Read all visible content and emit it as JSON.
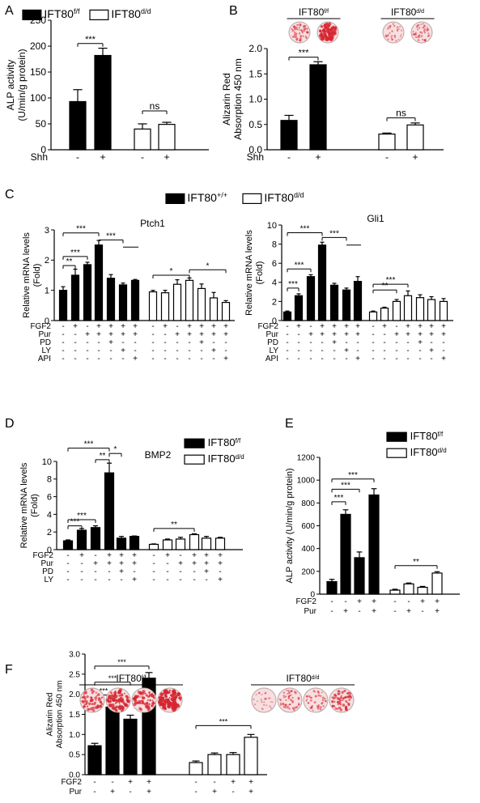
{
  "figure_labels": [
    "A",
    "B",
    "C",
    "D",
    "E",
    "F"
  ],
  "genotypes": {
    "ff": {
      "base": "IFT80",
      "sup": "f/f"
    },
    "dd": {
      "base": "IFT80",
      "sup": "d/d"
    },
    "pp": {
      "base": "IFT80",
      "sup": "+/+"
    }
  },
  "colors": {
    "filled": "#000000",
    "open": "#ffffff",
    "stain": "#d62631",
    "dish_bg": "#f7dfe0"
  },
  "chart_data": [
    {
      "id": "A",
      "type": "bar",
      "ylabel_lines": [
        "ALP activity",
        "(U/min/g protein)"
      ],
      "ylim": [
        0,
        250
      ],
      "yticks": [
        "0",
        "50",
        "100",
        "150",
        "200",
        "250"
      ],
      "legend": [
        "ff",
        "dd"
      ],
      "groups": [
        {
          "fill": "filled",
          "values": [
            93,
            182
          ],
          "errors": [
            23,
            14
          ]
        },
        {
          "fill": "open",
          "values": [
            40,
            49
          ],
          "errors": [
            10,
            4
          ]
        }
      ],
      "treat_rows": [
        {
          "name": "Shh",
          "marks": [
            "-",
            "+",
            "-",
            "+"
          ]
        }
      ],
      "sig": [
        {
          "label": "***",
          "from": 0,
          "to": 1,
          "y": 205
        },
        {
          "label": "ns",
          "from": 2,
          "to": 3,
          "y": 75
        }
      ]
    },
    {
      "id": "B",
      "type": "bar",
      "ylabel_lines": [
        "Alizarin Red",
        "Absorption 450 nm"
      ],
      "ylim": [
        0,
        2.0
      ],
      "yticks": [
        "0.0",
        "0.5",
        "1.0",
        "1.5",
        "2.0"
      ],
      "header": [
        {
          "genotype": "ff",
          "dishes": [
            0.35,
            0.8
          ]
        },
        {
          "genotype": "dd",
          "dishes": [
            0.2,
            0.3
          ]
        }
      ],
      "groups": [
        {
          "fill": "filled",
          "values": [
            0.58,
            1.68
          ],
          "errors": [
            0.1,
            0.06
          ]
        },
        {
          "fill": "open",
          "values": [
            0.31,
            0.49
          ],
          "errors": [
            0.02,
            0.04
          ]
        }
      ],
      "treat_rows": [
        {
          "name": "Shh",
          "marks": [
            "-",
            "+",
            "-",
            "+"
          ]
        }
      ],
      "sig": [
        {
          "label": "***",
          "from": 0,
          "to": 1,
          "y": 1.83
        },
        {
          "label": "ns",
          "from": 2,
          "to": 3,
          "y": 0.63
        }
      ]
    },
    {
      "id": "C1",
      "type": "bar",
      "title": "Ptch1",
      "ylabel_lines": [
        "Relative mRNA levels",
        "(Fold)"
      ],
      "ylim": [
        0,
        3
      ],
      "yticks": [
        "0",
        "1",
        "2",
        "3"
      ],
      "groups": [
        {
          "fill": "filled",
          "values": [
            1.0,
            1.5,
            1.85,
            2.5,
            1.4,
            1.18,
            1.33
          ],
          "errors": [
            0.12,
            0.2,
            0.08,
            0.15,
            0.12,
            0.06,
            0.03
          ]
        },
        {
          "fill": "open",
          "values": [
            0.95,
            0.92,
            1.2,
            1.33,
            1.06,
            0.75,
            0.6
          ],
          "errors": [
            0.05,
            0.08,
            0.15,
            0.08,
            0.15,
            0.18,
            0.06
          ]
        }
      ],
      "treat_rows": [
        {
          "name": "FGF2",
          "marks": [
            "-",
            "+",
            "-",
            "+",
            "+",
            "+",
            "+",
            "-",
            "+",
            "-",
            "+",
            "+",
            "+",
            "+"
          ]
        },
        {
          "name": "Pur",
          "marks": [
            "-",
            "-",
            "+",
            "+",
            "+",
            "+",
            "+",
            "-",
            "-",
            "+",
            "+",
            "+",
            "+",
            "+"
          ]
        },
        {
          "name": "PD",
          "marks": [
            "-",
            "-",
            "-",
            "-",
            "+",
            "-",
            "-",
            "-",
            "-",
            "-",
            "-",
            "+",
            "-",
            "-"
          ]
        },
        {
          "name": "LY",
          "marks": [
            "-",
            "-",
            "-",
            "-",
            "-",
            "+",
            "-",
            "-",
            "-",
            "-",
            "-",
            "-",
            "+",
            "-"
          ]
        },
        {
          "name": "API",
          "marks": [
            "-",
            "-",
            "-",
            "-",
            "-",
            "-",
            "+",
            "-",
            "-",
            "-",
            "-",
            "-",
            "-",
            "+"
          ]
        }
      ],
      "sig": [
        {
          "label": "**",
          "from": 0,
          "to": 1,
          "y": 1.82
        },
        {
          "label": "***",
          "from": 0,
          "to": 2,
          "y": 2.12
        },
        {
          "label": "***",
          "from": 0,
          "to": 3,
          "y": 2.9
        },
        {
          "label": "***",
          "from": 3,
          "to": 5,
          "y": 2.67,
          "to_right": 6
        },
        {
          "label": "*",
          "from": 7,
          "to": 10,
          "y": 1.5
        },
        {
          "label": "*",
          "from": 10,
          "to": 13,
          "y": 1.68
        }
      ]
    },
    {
      "id": "C2",
      "type": "bar",
      "title": "Gli1",
      "ylabel_lines": [
        "Relative mRNA levels",
        "(Fold)"
      ],
      "ylim": [
        0,
        10
      ],
      "yticks": [
        "0",
        "2",
        "4",
        "6",
        "8",
        "10"
      ],
      "groups": [
        {
          "fill": "filled",
          "values": [
            0.9,
            2.6,
            4.6,
            7.9,
            3.7,
            3.2,
            4.1
          ],
          "errors": [
            0.1,
            0.2,
            0.2,
            0.3,
            0.2,
            0.2,
            0.5
          ]
        },
        {
          "fill": "open",
          "values": [
            0.9,
            1.3,
            2.0,
            2.6,
            2.4,
            2.2,
            2.0
          ],
          "errors": [
            0.1,
            0.1,
            0.2,
            0.5,
            0.3,
            0.3,
            0.3
          ]
        }
      ],
      "treat_rows": [
        {
          "name": "FGF2",
          "marks": [
            "-",
            "+",
            "-",
            "+",
            "+",
            "+",
            "+",
            "-",
            "+",
            "-",
            "+",
            "+",
            "+",
            "+"
          ]
        },
        {
          "name": "Pur",
          "marks": [
            "-",
            "-",
            "+",
            "+",
            "+",
            "+",
            "+",
            "-",
            "-",
            "+",
            "+",
            "+",
            "+",
            "+"
          ]
        },
        {
          "name": "PD",
          "marks": [
            "-",
            "-",
            "-",
            "-",
            "+",
            "-",
            "-",
            "-",
            "-",
            "-",
            "-",
            "+",
            "-",
            "-"
          ]
        },
        {
          "name": "LY",
          "marks": [
            "-",
            "-",
            "-",
            "-",
            "-",
            "+",
            "-",
            "-",
            "-",
            "-",
            "-",
            "-",
            "+",
            "-"
          ]
        },
        {
          "name": "API",
          "marks": [
            "-",
            "-",
            "-",
            "-",
            "-",
            "-",
            "+",
            "-",
            "-",
            "-",
            "-",
            "-",
            "-",
            "+"
          ]
        }
      ],
      "sig": [
        {
          "label": "***",
          "from": 0,
          "to": 1,
          "y": 3.4
        },
        {
          "label": "***",
          "from": 0,
          "to": 2,
          "y": 5.4
        },
        {
          "label": "***",
          "from": 0,
          "to": 3,
          "y": 9.2
        },
        {
          "label": "***",
          "from": 3,
          "to": 5,
          "y": 8.7,
          "to_right": 6
        },
        {
          "label": "**",
          "from": 7,
          "to": 9,
          "y": 3.2
        },
        {
          "label": "***",
          "from": 7,
          "to": 10,
          "y": 3.8
        }
      ]
    },
    {
      "id": "D",
      "type": "bar",
      "title": "BMP2",
      "ylabel_lines": [
        "Relative mRNA levels",
        "(Fold)"
      ],
      "ylim": [
        0,
        10
      ],
      "yticks": [
        "0",
        "2",
        "4",
        "6",
        "8",
        "10"
      ],
      "legend": [
        "ff",
        "dd"
      ],
      "groups": [
        {
          "fill": "filled",
          "values": [
            1.0,
            2.2,
            2.5,
            8.7,
            1.3,
            1.5
          ],
          "errors": [
            0.1,
            0.2,
            0.2,
            1.1,
            0.2,
            0.05
          ]
        },
        {
          "fill": "open",
          "values": [
            0.6,
            1.1,
            1.2,
            1.7,
            1.3,
            1.3
          ],
          "errors": [
            0.05,
            0.1,
            0.2,
            0.1,
            0.2,
            0.1
          ]
        }
      ],
      "treat_rows": [
        {
          "name": "FGF2",
          "marks": [
            "-",
            "+",
            "-",
            "+",
            "+",
            "+",
            "-",
            "+",
            "-",
            "+",
            "+",
            "+"
          ]
        },
        {
          "name": "Pur",
          "marks": [
            "-",
            "-",
            "+",
            "+",
            "+",
            "+",
            "-",
            "-",
            "+",
            "+",
            "+",
            "+"
          ]
        },
        {
          "name": "PD",
          "marks": [
            "-",
            "-",
            "-",
            "-",
            "+",
            "-",
            "-",
            "-",
            "-",
            "-",
            "+",
            "-"
          ]
        },
        {
          "name": "LY",
          "marks": [
            "-",
            "-",
            "-",
            "-",
            "-",
            "+",
            "-",
            "-",
            "-",
            "-",
            "-",
            "+"
          ]
        }
      ],
      "sig": [
        {
          "label": "***",
          "from": 0,
          "to": 1,
          "y": 2.7
        },
        {
          "label": "***",
          "from": 0,
          "to": 2,
          "y": 3.4
        },
        {
          "label": "***",
          "from": 0,
          "to": 3,
          "y": 11.5
        },
        {
          "label": "**",
          "from": 2,
          "to": 3,
          "y": 10.2
        },
        {
          "label": "*",
          "from": 3,
          "to": 4,
          "y": 10.9
        },
        {
          "label": "**",
          "from": 6,
          "to": 9,
          "y": 2.4
        }
      ]
    },
    {
      "id": "E",
      "type": "bar",
      "ylabel_lines": [
        "ALP activity (U/min/g protein)"
      ],
      "ylim": [
        0,
        1200
      ],
      "yticks": [
        "0",
        "200",
        "400",
        "600",
        "800",
        "1000",
        "1200"
      ],
      "legend": [
        "ff",
        "dd"
      ],
      "groups": [
        {
          "fill": "filled",
          "values": [
            110,
            700,
            320,
            870
          ],
          "errors": [
            20,
            40,
            50,
            55
          ]
        },
        {
          "fill": "open",
          "values": [
            35,
            90,
            60,
            185
          ],
          "errors": [
            8,
            8,
            8,
            12
          ]
        }
      ],
      "treat_rows": [
        {
          "name": "FGF2",
          "marks": [
            "-",
            "-",
            "+",
            "+",
            "-",
            "-",
            "+",
            "+"
          ]
        },
        {
          "name": "Pur",
          "marks": [
            "-",
            "+",
            "-",
            "+",
            "-",
            "+",
            "-",
            "+"
          ]
        }
      ],
      "sig": [
        {
          "label": "***",
          "from": 0,
          "to": 1,
          "y": 810
        },
        {
          "label": "***",
          "from": 0,
          "to": 2,
          "y": 920
        },
        {
          "label": "***",
          "from": 0,
          "to": 3,
          "y": 1010
        },
        {
          "label": "**",
          "from": 4,
          "to": 7,
          "y": 250
        }
      ]
    },
    {
      "id": "F",
      "type": "bar",
      "ylabel_lines": [
        "Alizarin Red",
        "Absorption 450 nm"
      ],
      "ylim": [
        0,
        3.0
      ],
      "yticks": [
        "0.0",
        "0.5",
        "1.0",
        "1.5",
        "2.0",
        "2.5",
        "3.0"
      ],
      "header": [
        {
          "genotype": "ff",
          "dishes": [
            0.55,
            0.75,
            0.65,
            0.95
          ]
        },
        {
          "genotype": "dd",
          "dishes": [
            0.12,
            0.35,
            0.3,
            0.55
          ]
        }
      ],
      "groups": [
        {
          "fill": "filled",
          "values": [
            0.72,
            1.68,
            1.38,
            2.4
          ],
          "errors": [
            0.06,
            0.05,
            0.1,
            0.14
          ]
        },
        {
          "fill": "open",
          "values": [
            0.3,
            0.5,
            0.5,
            0.93
          ],
          "errors": [
            0.04,
            0.04,
            0.05,
            0.07
          ]
        }
      ],
      "treat_rows": [
        {
          "name": "FGF2",
          "marks": [
            "-",
            "-",
            "+",
            "+",
            "-",
            "-",
            "+",
            "+"
          ]
        },
        {
          "name": "Pur",
          "marks": [
            "-",
            "+",
            "-",
            "+",
            "-",
            "+",
            "-",
            "+"
          ]
        }
      ],
      "sig": [
        {
          "label": "***",
          "from": 0,
          "to": 1,
          "y": 1.98
        },
        {
          "label": "***",
          "from": 0,
          "to": 2,
          "y": 2.3
        },
        {
          "label": "***",
          "from": 0,
          "to": 3,
          "y": 2.7
        },
        {
          "label": "***",
          "from": 4,
          "to": 7,
          "y": 1.22
        }
      ]
    }
  ]
}
